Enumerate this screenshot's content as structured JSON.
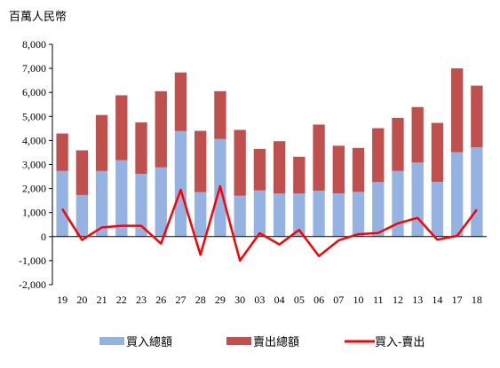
{
  "chart_data": {
    "type": "bar",
    "stacked": true,
    "unit_label": "百萬人民幣",
    "categories": [
      "19",
      "20",
      "21",
      "22",
      "23",
      "26",
      "27",
      "28",
      "29",
      "30",
      "03",
      "04",
      "05",
      "06",
      "07",
      "10",
      "11",
      "12",
      "13",
      "14",
      "17",
      "18"
    ],
    "series": [
      {
        "name": "買入總額",
        "kind": "bar",
        "color": "#95b3e2",
        "values": [
          2730,
          1730,
          2730,
          3180,
          2610,
          2880,
          4390,
          1850,
          4060,
          1700,
          1920,
          1790,
          1790,
          1910,
          1800,
          1860,
          2270,
          2730,
          3080,
          2280,
          3510,
          3720
        ]
      },
      {
        "name": "賣出總額",
        "kind": "bar",
        "color": "#c0504d",
        "values": [
          1560,
          1860,
          2330,
          2700,
          2140,
          3170,
          2440,
          2550,
          1990,
          2740,
          1730,
          2180,
          1530,
          2750,
          1980,
          1830,
          2240,
          2210,
          2310,
          2450,
          3490,
          2560
        ]
      },
      {
        "name": "買入-賣出",
        "kind": "line",
        "color": "#ff0000",
        "values": [
          1150,
          -140,
          380,
          450,
          450,
          -290,
          1950,
          -760,
          2100,
          -1000,
          140,
          -330,
          280,
          -810,
          -160,
          100,
          150,
          550,
          780,
          -130,
          30,
          1120
        ]
      }
    ],
    "y_axis": {
      "min": -2000,
      "max": 8000,
      "step": 1000,
      "tick_labels": [
        "-2,000",
        "-1,000",
        "0",
        "1,000",
        "2,000",
        "3,000",
        "4,000",
        "5,000",
        "6,000",
        "7,000",
        "8,000"
      ]
    },
    "grid": false,
    "legend_position": "bottom"
  }
}
